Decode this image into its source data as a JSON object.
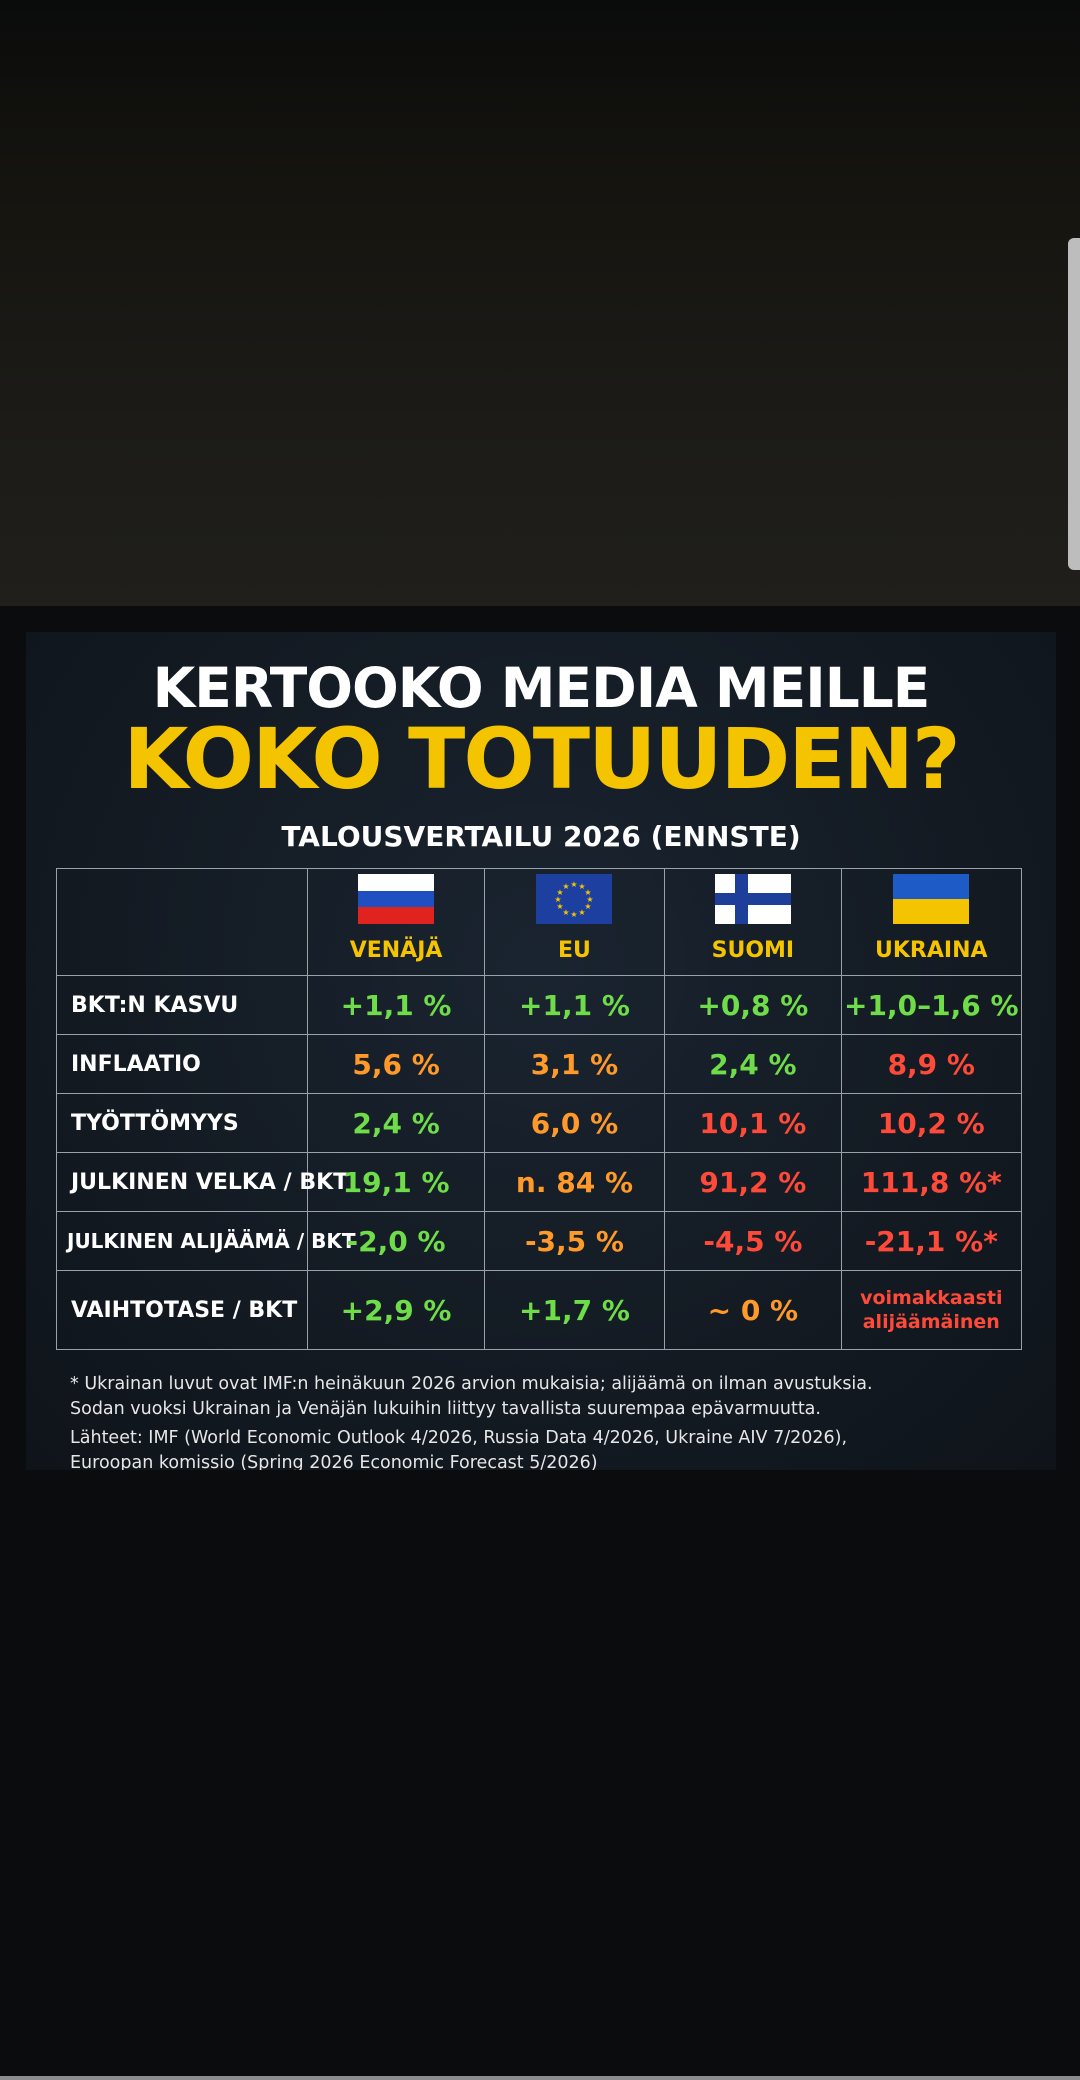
{
  "poster": {
    "headline_line1": "KERTOOKO MEDIA MEILLE",
    "headline_line2": "KOKO TOTUUDEN?",
    "subtitle": "TALOUSVERTAILU 2026 (ENNSTE)"
  },
  "table": {
    "columns": [
      {
        "name": "VENÄJÄ",
        "flag": "russia-flag"
      },
      {
        "name": "EU",
        "flag": "eu-flag"
      },
      {
        "name": "SUOMI",
        "flag": "finland-flag"
      },
      {
        "name": "UKRAINA",
        "flag": "ukraine-flag"
      }
    ],
    "rows": [
      {
        "label": "BKT:N KASVU",
        "values": [
          "+1,1 %",
          "+1,1 %",
          "+0,8 %",
          "+1,0–1,6 %"
        ],
        "colors": [
          "green",
          "green",
          "green",
          "green"
        ]
      },
      {
        "label": "INFLAATIO",
        "values": [
          "5,6 %",
          "3,1 %",
          "2,4 %",
          "8,9 %"
        ],
        "colors": [
          "orange",
          "orange",
          "green",
          "red"
        ]
      },
      {
        "label": "TYÖTTÖMYYS",
        "values": [
          "2,4 %",
          "6,0 %",
          "10,1 %",
          "10,2 %"
        ],
        "colors": [
          "green",
          "orange",
          "red",
          "red"
        ]
      },
      {
        "label": "JULKINEN VELKA / BKT",
        "values": [
          "19,1 %",
          "n. 84 %",
          "91,2 %",
          "111,8 %*"
        ],
        "colors": [
          "green",
          "orange",
          "red",
          "red"
        ]
      },
      {
        "label": "JULKINEN ALIJÄÄMÄ / BKT",
        "values": [
          "-2,0 %",
          "-3,5 %",
          "-4,5 %",
          "-21,1 %*"
        ],
        "colors": [
          "green",
          "orange",
          "red",
          "red"
        ]
      },
      {
        "label": "VAIHTOTASE / BKT",
        "values": [
          "+2,9 %",
          "+1,7 %",
          "~ 0 %",
          "voimakkaasti alijäämäinen"
        ],
        "colors": [
          "green",
          "green",
          "orange",
          "red"
        ]
      }
    ]
  },
  "footnote": {
    "line1": "* Ukrainan luvut ovat IMF:n heinäkuun 2026 arvion mukaisia; alijäämä on ilman avustuksia.",
    "line2": "Sodan vuoksi Ukrainan ja Venäjän lukuihin liittyy tavallista suurempaa epävarmuutta."
  },
  "sources": {
    "line1": "Lähteet: IMF (World Economic Outlook 4/2026, Russia Data 4/2026, Ukraine AIV 7/2026),",
    "line2": "Euroopan komissio (Spring 2026 Economic Forecast 5/2026)"
  },
  "colors": {
    "accent_yellow": "#f5c400",
    "good_green": "#6fdc4a",
    "mid_orange": "#ff9a2a",
    "bad_red": "#ff4a3a"
  }
}
